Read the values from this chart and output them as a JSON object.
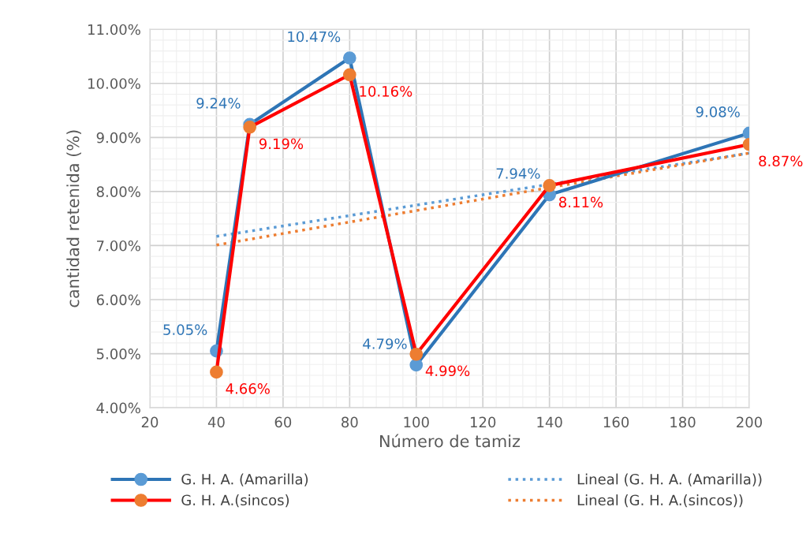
{
  "chart_data": {
    "type": "line",
    "xlabel": "Número de tamiz",
    "ylabel": "cantidad retenida (%)",
    "xlim": [
      20,
      200
    ],
    "xticks": [
      20,
      40,
      60,
      80,
      100,
      120,
      140,
      160,
      180,
      200
    ],
    "ylim": [
      4,
      11
    ],
    "yticks": [
      {
        "value": 4,
        "label": "4.00%"
      },
      {
        "value": 5,
        "label": "5.00%"
      },
      {
        "value": 6,
        "label": "6.00%"
      },
      {
        "value": 7,
        "label": "7.00%"
      },
      {
        "value": 8,
        "label": "8.00%"
      },
      {
        "value": 9,
        "label": "9.00%"
      },
      {
        "value": 10,
        "label": "10.00%"
      },
      {
        "value": 11,
        "label": "11.00%"
      }
    ],
    "grid": true,
    "legend": "bottom",
    "marker": "circle",
    "series": [
      {
        "name": "G. H. A. (Amarilla)",
        "color": "#2e75b6",
        "x": [
          40,
          50,
          80,
          100,
          140,
          200
        ],
        "values": [
          5.05,
          9.24,
          10.47,
          4.79,
          7.94,
          9.08
        ],
        "value_labels": [
          "5.05%",
          "9.24%",
          "10.47%",
          "4.79%",
          "7.94%",
          "9.08%"
        ]
      },
      {
        "name": "G. H. A.(sincos)",
        "color": "#ff0000",
        "x": [
          40,
          50,
          80,
          100,
          140,
          200
        ],
        "values": [
          4.66,
          9.19,
          10.16,
          4.99,
          8.11,
          8.87
        ],
        "value_labels": [
          "4.66%",
          "9.19%",
          "10.16%",
          "4.99%",
          "8.11%",
          "8.87%"
        ]
      },
      {
        "name": "Lineal (G. H. A. (Amarilla))",
        "color": "#5b9bd5",
        "x": [
          40,
          200
        ],
        "values": [
          7.17,
          8.71
        ],
        "marker": "none",
        "line_style": "dotted"
      },
      {
        "name": "Lineal (G. H. A.(sincos))",
        "color": "#ed7d31",
        "x": [
          40,
          200
        ],
        "values": [
          7.01,
          8.71
        ],
        "marker": "none",
        "line_style": "dotted"
      }
    ]
  }
}
